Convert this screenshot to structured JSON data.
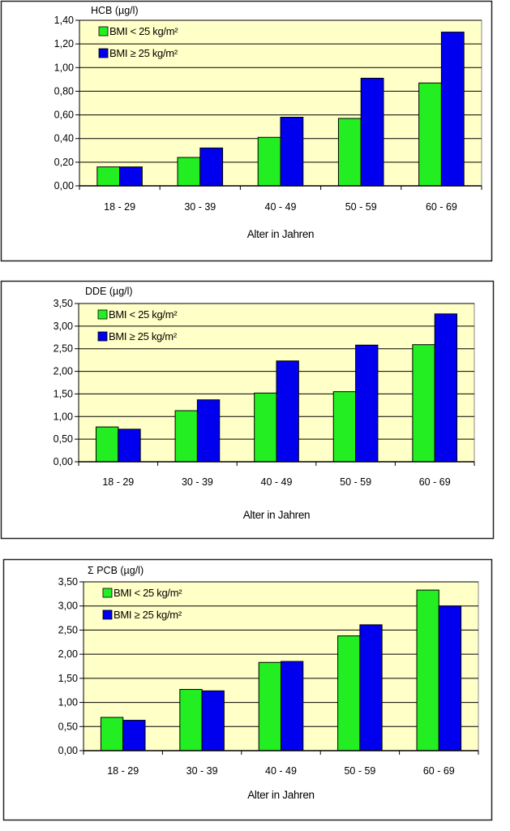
{
  "colors": {
    "series_low": "#22ee22",
    "series_high": "#0000ee",
    "plot_bg": "#ffffc8",
    "grid": "#000000"
  },
  "chart_data": [
    {
      "type": "bar",
      "title": "HCB (µg/l)",
      "xlabel": "Alter in Jahren",
      "ylabel": "HCB (µg/l)",
      "categories": [
        "18 - 29",
        "30 - 39",
        "40 - 49",
        "50 - 59",
        "60 - 69"
      ],
      "ylim": [
        0,
        1.4
      ],
      "yticks": [
        0,
        0.2,
        0.4,
        0.6,
        0.8,
        1.0,
        1.2,
        1.4
      ],
      "ytick_labels": [
        "0,00",
        "0,20",
        "0,40",
        "0,60",
        "0,80",
        "1,00",
        "1,20",
        "1,40"
      ],
      "grid": true,
      "legend_position": "top-left",
      "series": [
        {
          "name": "BMI < 25 kg/m²",
          "values": [
            0.16,
            0.24,
            0.41,
            0.57,
            0.87
          ]
        },
        {
          "name": "BMI ≥ 25 kg/m²",
          "values": [
            0.16,
            0.32,
            0.58,
            0.91,
            1.3
          ]
        }
      ]
    },
    {
      "type": "bar",
      "title": "DDE (µg/l)",
      "xlabel": "Alter in Jahren",
      "ylabel": "DDE (µg/l)",
      "categories": [
        "18 - 29",
        "30 - 39",
        "40 - 49",
        "50 - 59",
        "60 - 69"
      ],
      "ylim": [
        0,
        3.5
      ],
      "yticks": [
        0,
        0.5,
        1.0,
        1.5,
        2.0,
        2.5,
        3.0,
        3.5
      ],
      "ytick_labels": [
        "0,00",
        "0,50",
        "1,00",
        "1,50",
        "2,00",
        "2,50",
        "3,00",
        "3,50"
      ],
      "grid": true,
      "legend_position": "top-left",
      "series": [
        {
          "name": "BMI < 25 kg/m²",
          "values": [
            0.77,
            1.13,
            1.52,
            1.55,
            2.59
          ]
        },
        {
          "name": "BMI ≥ 25 kg/m²",
          "values": [
            0.72,
            1.37,
            2.23,
            2.58,
            3.27
          ]
        }
      ]
    },
    {
      "type": "bar",
      "title": "Σ PCB  (µg/l)",
      "xlabel": "Alter in Jahren",
      "ylabel": "Σ PCB (µg/l)",
      "categories": [
        "18 - 29",
        "30 - 39",
        "40 - 49",
        "50 - 59",
        "60 - 69"
      ],
      "ylim": [
        0,
        3.5
      ],
      "yticks": [
        0,
        0.5,
        1.0,
        1.5,
        2.0,
        2.5,
        3.0,
        3.5
      ],
      "ytick_labels": [
        "0,00",
        "0,50",
        "1,00",
        "1,50",
        "2,00",
        "2,50",
        "3,00",
        "3,50"
      ],
      "grid": true,
      "legend_position": "top-left",
      "series": [
        {
          "name": "BMI < 25 kg/m²",
          "values": [
            0.69,
            1.27,
            1.83,
            2.38,
            3.33
          ]
        },
        {
          "name": "BMI ≥ 25 kg/m²",
          "values": [
            0.63,
            1.24,
            1.85,
            2.61,
            3.0
          ]
        }
      ]
    }
  ]
}
